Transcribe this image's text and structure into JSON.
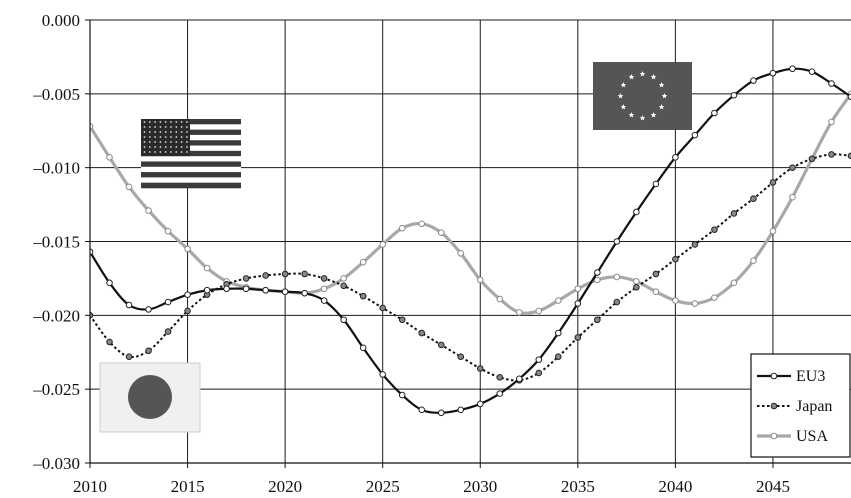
{
  "chart_data": {
    "type": "line",
    "title": "",
    "xlabel": "",
    "ylabel": "",
    "xlim": [
      2010,
      2049
    ],
    "ylim": [
      -0.03,
      0.0
    ],
    "x_ticks": [
      2010,
      2015,
      2020,
      2025,
      2030,
      2035,
      2040,
      2045
    ],
    "y_ticks": [
      0.0,
      -0.005,
      -0.01,
      -0.015,
      -0.02,
      -0.025,
      -0.03
    ],
    "x_tick_labels": [
      "2010",
      "2015",
      "2020",
      "2025",
      "2030",
      "2035",
      "2040",
      "2045"
    ],
    "y_tick_labels": [
      "0.000",
      "–0.005",
      "–0.010",
      "–0.015",
      "–0.020",
      "–0.025",
      "–0.030"
    ],
    "grid": true,
    "legend_position": "bottom-right",
    "x": [
      2010,
      2011,
      2012,
      2013,
      2014,
      2015,
      2016,
      2017,
      2018,
      2019,
      2020,
      2021,
      2022,
      2023,
      2024,
      2025,
      2026,
      2027,
      2028,
      2029,
      2030,
      2031,
      2032,
      2033,
      2034,
      2035,
      2036,
      2037,
      2038,
      2039,
      2040,
      2041,
      2042,
      2043,
      2044,
      2045,
      2046,
      2047,
      2048,
      2049
    ],
    "series": [
      {
        "name": "EU3",
        "color": "#111111",
        "style": "solid",
        "marker_fill": "#ffffff",
        "values": [
          -0.0157,
          -0.0178,
          -0.0193,
          -0.0196,
          -0.0191,
          -0.0186,
          -0.0183,
          -0.0182,
          -0.0182,
          -0.0183,
          -0.0184,
          -0.0185,
          -0.019,
          -0.0203,
          -0.0222,
          -0.024,
          -0.0254,
          -0.0264,
          -0.0266,
          -0.0264,
          -0.026,
          -0.0253,
          -0.0243,
          -0.023,
          -0.0212,
          -0.0192,
          -0.0171,
          -0.015,
          -0.013,
          -0.0111,
          -0.0093,
          -0.0078,
          -0.0063,
          -0.0051,
          -0.0041,
          -0.0036,
          -0.0033,
          -0.0035,
          -0.0043,
          -0.0052
        ]
      },
      {
        "name": "Japan",
        "color": "#111111",
        "style": "dotted",
        "marker_fill": "#888888",
        "values": [
          -0.02,
          -0.0218,
          -0.0228,
          -0.0224,
          -0.0211,
          -0.0197,
          -0.0186,
          -0.0179,
          -0.0175,
          -0.0173,
          -0.0172,
          -0.0172,
          -0.0175,
          -0.018,
          -0.0187,
          -0.0195,
          -0.0203,
          -0.0212,
          -0.022,
          -0.0228,
          -0.0236,
          -0.0242,
          -0.0244,
          -0.0239,
          -0.0228,
          -0.0215,
          -0.0203,
          -0.0191,
          -0.0181,
          -0.0172,
          -0.0162,
          -0.0152,
          -0.0142,
          -0.0131,
          -0.0121,
          -0.011,
          -0.01,
          -0.0094,
          -0.0091,
          -0.0092
        ]
      },
      {
        "name": "USA",
        "color": "#a8a8a8",
        "style": "solid",
        "marker_fill": "#ffffff",
        "values": [
          -0.0072,
          -0.0093,
          -0.0113,
          -0.0129,
          -0.0143,
          -0.0155,
          -0.0168,
          -0.0177,
          -0.0181,
          -0.0183,
          -0.0184,
          -0.0185,
          -0.0182,
          -0.0175,
          -0.0164,
          -0.0152,
          -0.0141,
          -0.0138,
          -0.0144,
          -0.0158,
          -0.0176,
          -0.0189,
          -0.0198,
          -0.0197,
          -0.019,
          -0.0182,
          -0.0176,
          -0.0174,
          -0.0177,
          -0.0184,
          -0.019,
          -0.0192,
          -0.0188,
          -0.0178,
          -0.0163,
          -0.0143,
          -0.012,
          -0.0094,
          -0.0069,
          -0.005
        ]
      }
    ]
  },
  "flags": {
    "usa": {
      "stripe_dark": "#3a3a3a",
      "stripe_light": "#ffffff",
      "canton": "#2a2a2a",
      "star": "#dddddd"
    },
    "eu": {
      "background": "#555555",
      "star": "#ffffff"
    },
    "japan": {
      "background": "#f0f0f0",
      "disc": "#555555"
    }
  }
}
